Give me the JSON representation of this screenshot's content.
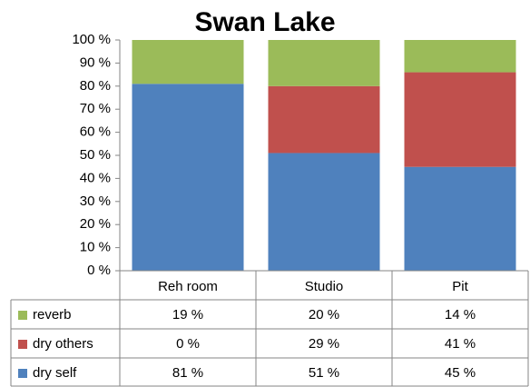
{
  "chart_data": {
    "type": "stacked_bar_100",
    "title": "Swan Lake",
    "categories": [
      "Reh room",
      "Studio",
      "Pit"
    ],
    "series": [
      {
        "name": "dry self",
        "color": "#4f81bd",
        "values": [
          81,
          51,
          45
        ],
        "value_labels": [
          "81 %",
          "51 %",
          "45 %"
        ]
      },
      {
        "name": "dry others",
        "color": "#c0504d",
        "values": [
          0,
          29,
          41
        ],
        "value_labels": [
          "0 %",
          "29 %",
          "41 %"
        ]
      },
      {
        "name": "reverb",
        "color": "#9bbb59",
        "values": [
          19,
          20,
          14
        ],
        "value_labels": [
          "19 %",
          "20 %",
          "14 %"
        ]
      }
    ],
    "ylim": [
      0,
      100
    ],
    "yticks": [
      {
        "value": 0,
        "label": "0 %"
      },
      {
        "value": 10,
        "label": "10 %"
      },
      {
        "value": 20,
        "label": "20 %"
      },
      {
        "value": 30,
        "label": "30 %"
      },
      {
        "value": 40,
        "label": "40 %"
      },
      {
        "value": 50,
        "label": "50 %"
      },
      {
        "value": 60,
        "label": "60 %"
      },
      {
        "value": 70,
        "label": "70 %"
      },
      {
        "value": 80,
        "label": "80 %"
      },
      {
        "value": 90,
        "label": "90 %"
      },
      {
        "value": 100,
        "label": "100 %"
      }
    ],
    "grid": false
  }
}
